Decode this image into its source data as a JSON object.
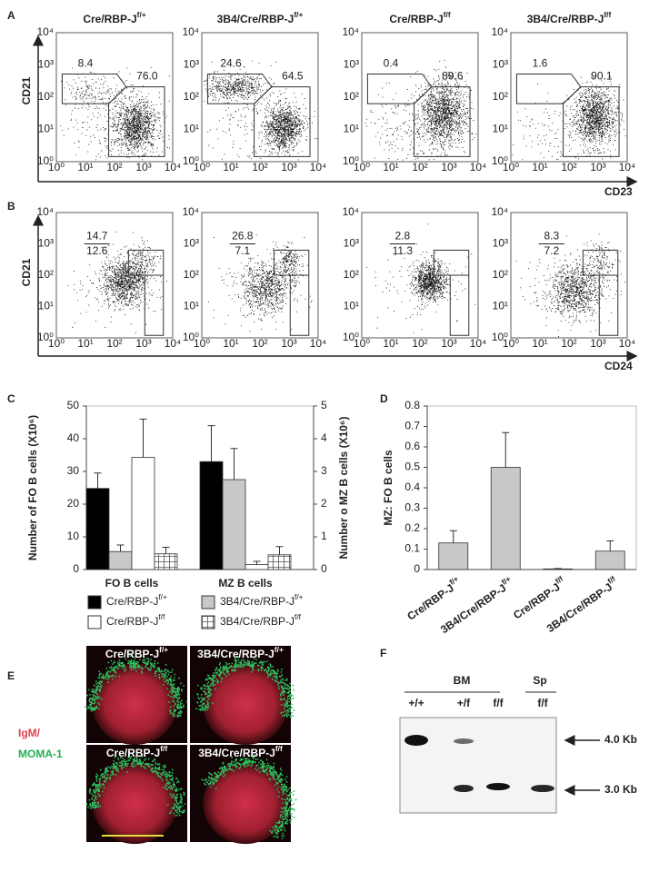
{
  "figure": {
    "panel_labels": [
      "A",
      "B",
      "C",
      "D",
      "E",
      "F"
    ],
    "flow_ticks": [
      "10⁰",
      "10¹",
      "10²",
      "10³",
      "10⁴"
    ],
    "a": {
      "y_axis": "CD21",
      "x_axis": "CD23",
      "plots": [
        {
          "title": "Cre/RBP-Jf/+",
          "gates": [
            "8.4",
            "76.0"
          ]
        },
        {
          "title": "3B4/Cre/RBP-Jf/+",
          "gates": [
            "24.6",
            "64.5"
          ]
        },
        {
          "title": "Cre/RBP-Jf/f",
          "gates": [
            "0.4",
            "89.6"
          ]
        },
        {
          "title": "3B4/Cre/RBP-Jf/f",
          "gates": [
            "1.6",
            "90.1"
          ]
        }
      ]
    },
    "b": {
      "y_axis": "CD21",
      "x_axis": "CD24",
      "plots": [
        {
          "gates": [
            "14.7",
            "12.6"
          ]
        },
        {
          "gates": [
            "26.8",
            "7.1"
          ]
        },
        {
          "gates": [
            "2.8",
            "11.3"
          ]
        },
        {
          "gates": [
            "8.3",
            "7.2"
          ]
        }
      ]
    },
    "e": {
      "channels": [
        "IgM/",
        "MOMA-1"
      ],
      "titles": [
        "Cre/RBP-Jf/+",
        "3B4/Cre/RBP-Jf/+",
        "Cre/RBP-Jf/f",
        "3B4/Cre/RBP-Jf/f"
      ]
    },
    "f": {
      "groups": [
        "BM",
        "Sp"
      ],
      "lanes": [
        "+/+",
        "+/f",
        "f/f",
        "f/f"
      ],
      "bands": [
        "4.0 Kb",
        "3.0 Kb"
      ]
    }
  },
  "chart_data": [
    {
      "type": "bar",
      "categories": [
        "FO B cells"
      ],
      "ylabel": "Number of FO B cells (X10⁶)",
      "ylim": [
        0,
        50
      ],
      "yticks": [
        0,
        10,
        20,
        30,
        40,
        50
      ],
      "series": [
        {
          "name": "Cre/RBP-Jf/+",
          "color": "#000000",
          "values": [
            24.8
          ],
          "errors": [
            4.7
          ]
        },
        {
          "name": "3B4/Cre/RBP-Jf/+",
          "color": "#c8c8c8",
          "values": [
            5.5
          ],
          "errors": [
            2.0
          ]
        },
        {
          "name": "Cre/RBP-Jf/f",
          "color": "#ffffff",
          "values": [
            34.3
          ],
          "errors": [
            11.7
          ]
        },
        {
          "name": "3B4/Cre/RBP-Jf/f",
          "color": "#ffffff",
          "pattern": "grid",
          "values": [
            4.8
          ],
          "errors": [
            2.0
          ]
        }
      ]
    },
    {
      "type": "bar",
      "categories": [
        "MZ B cells"
      ],
      "y2label": "Number o MZ B cells (X10⁶)",
      "y2lim": [
        0,
        5
      ],
      "y2ticks": [
        0,
        1,
        2,
        3,
        4,
        5
      ],
      "series": [
        {
          "axis": "y2",
          "color": "#000000",
          "values": [
            3.3
          ],
          "errors": [
            1.1
          ]
        },
        {
          "axis": "y2",
          "color": "#c8c8c8",
          "values": [
            2.75
          ],
          "errors": [
            0.95
          ]
        },
        {
          "axis": "y2",
          "color": "#ffffff",
          "values": [
            0.15
          ],
          "errors": [
            0.1
          ]
        },
        {
          "axis": "y2",
          "color": "#ffffff",
          "pattern": "grid",
          "values": [
            0.45
          ],
          "errors": [
            0.25
          ]
        }
      ]
    },
    {
      "type": "bar",
      "categories": [
        "Cre/RBP-Jf/+",
        "3B4/Cre/RBP-Jf/+",
        "Cre/RBP-Jf/f",
        "3B4/Cre/RBP-Jf/f"
      ],
      "ylabel": "MZ: FO B cells",
      "ylim": [
        0,
        0.8
      ],
      "yticks": [
        0,
        0.1,
        0.2,
        0.3,
        0.4,
        0.5,
        0.6,
        0.7,
        0.8
      ],
      "series": [
        {
          "color": "#c8c8c8",
          "values": [
            0.13,
            0.5,
            0.003,
            0.09
          ],
          "errors": [
            0.06,
            0.17,
            0.002,
            0.05
          ]
        }
      ]
    }
  ]
}
